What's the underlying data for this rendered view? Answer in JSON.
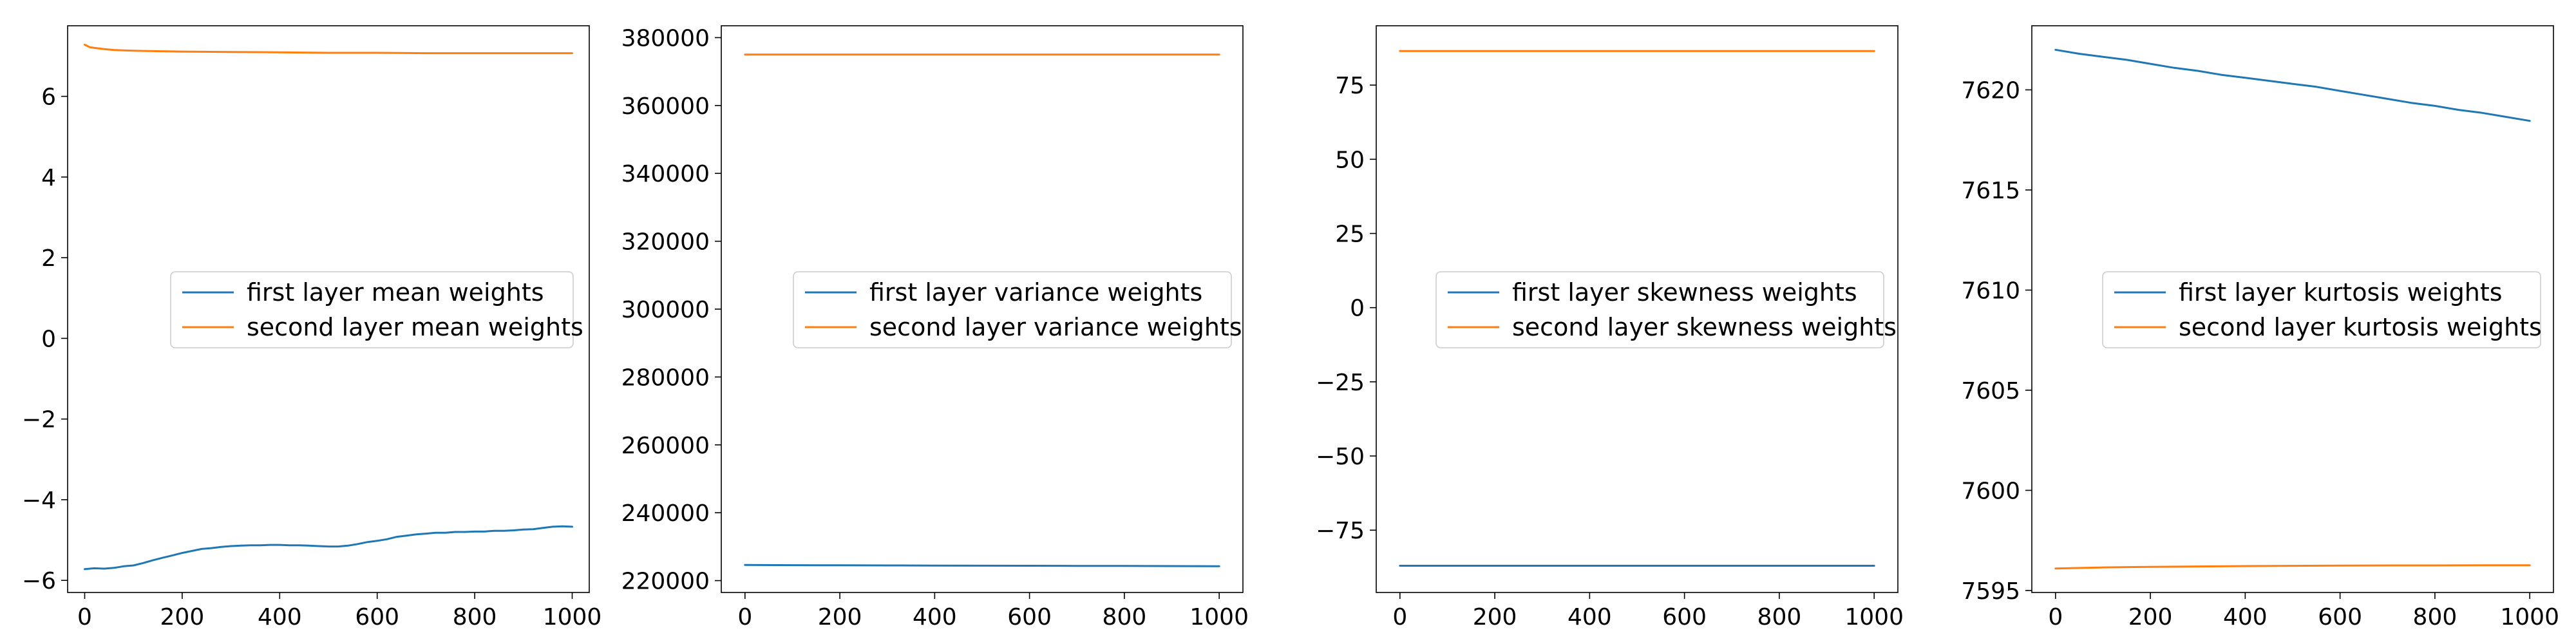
{
  "chart_data": [
    {
      "type": "line",
      "title": "",
      "xlabel": "",
      "ylabel": "",
      "xlim": [
        -35,
        1035
      ],
      "ylim": [
        -6.3,
        7.75
      ],
      "xticks": [
        0,
        200,
        400,
        600,
        800,
        1000
      ],
      "xtick_labels": [
        "0",
        "200",
        "400",
        "600",
        "800",
        "1000"
      ],
      "yticks": [
        -6,
        -4,
        -2,
        0,
        2,
        4,
        6
      ],
      "ytick_labels": [
        "−6",
        "−4",
        "−2",
        "0",
        "2",
        "4",
        "6"
      ],
      "grid": false,
      "legend_position": "center-right",
      "series": [
        {
          "name": "first layer mean weights",
          "color": "#1f77b4",
          "x": [
            0,
            20,
            40,
            60,
            80,
            100,
            120,
            140,
            160,
            180,
            200,
            220,
            240,
            260,
            280,
            300,
            320,
            340,
            360,
            380,
            400,
            420,
            440,
            460,
            480,
            500,
            520,
            540,
            560,
            580,
            600,
            620,
            640,
            660,
            680,
            700,
            720,
            740,
            760,
            780,
            800,
            820,
            840,
            860,
            880,
            900,
            920,
            940,
            960,
            980,
            1000
          ],
          "y": [
            -5.72,
            -5.7,
            -5.71,
            -5.69,
            -5.65,
            -5.63,
            -5.57,
            -5.5,
            -5.44,
            -5.38,
            -5.32,
            -5.27,
            -5.22,
            -5.2,
            -5.17,
            -5.15,
            -5.14,
            -5.13,
            -5.13,
            -5.12,
            -5.12,
            -5.13,
            -5.13,
            -5.14,
            -5.15,
            -5.16,
            -5.16,
            -5.14,
            -5.1,
            -5.05,
            -5.02,
            -4.98,
            -4.92,
            -4.89,
            -4.86,
            -4.84,
            -4.82,
            -4.82,
            -4.8,
            -4.8,
            -4.79,
            -4.79,
            -4.77,
            -4.77,
            -4.76,
            -4.74,
            -4.73,
            -4.7,
            -4.67,
            -4.66,
            -4.67
          ]
        },
        {
          "name": "second layer mean weights",
          "color": "#ff7f0e",
          "x": [
            0,
            10,
            20,
            40,
            60,
            80,
            100,
            150,
            200,
            300,
            400,
            500,
            600,
            700,
            800,
            900,
            1000
          ],
          "y": [
            7.28,
            7.22,
            7.2,
            7.17,
            7.15,
            7.14,
            7.13,
            7.12,
            7.11,
            7.1,
            7.09,
            7.08,
            7.08,
            7.07,
            7.07,
            7.07,
            7.07
          ]
        }
      ]
    },
    {
      "type": "line",
      "title": "",
      "xlabel": "",
      "ylabel": "",
      "xlim": [
        -50,
        1050
      ],
      "ylim": [
        216500,
        383500
      ],
      "xticks": [
        0,
        200,
        400,
        600,
        800,
        1000
      ],
      "xtick_labels": [
        "0",
        "200",
        "400",
        "600",
        "800",
        "1000"
      ],
      "yticks": [
        220000,
        240000,
        260000,
        280000,
        300000,
        320000,
        340000,
        360000,
        380000
      ],
      "ytick_labels": [
        "220000",
        "240000",
        "260000",
        "280000",
        "300000",
        "320000",
        "340000",
        "360000",
        "380000"
      ],
      "grid": false,
      "legend_position": "center-right",
      "series": [
        {
          "name": "first layer variance weights",
          "color": "#1f77b4",
          "x": [
            0,
            100,
            200,
            300,
            400,
            500,
            600,
            700,
            800,
            900,
            1000
          ],
          "y": [
            224600,
            224550,
            224500,
            224470,
            224430,
            224400,
            224370,
            224340,
            224310,
            224280,
            224250
          ]
        },
        {
          "name": "second layer variance weights",
          "color": "#ff7f0e",
          "x": [
            0,
            100,
            200,
            300,
            400,
            500,
            600,
            700,
            800,
            900,
            1000
          ],
          "y": [
            375000,
            375000,
            375000,
            375000,
            375000,
            375000,
            375000,
            375000,
            375000,
            375000,
            375000
          ]
        }
      ]
    },
    {
      "type": "line",
      "title": "",
      "xlabel": "",
      "ylabel": "",
      "xlim": [
        -50,
        1050
      ],
      "ylim": [
        -96,
        95
      ],
      "xticks": [
        0,
        200,
        400,
        600,
        800,
        1000
      ],
      "xtick_labels": [
        "0",
        "200",
        "400",
        "600",
        "800",
        "1000"
      ],
      "yticks": [
        -75,
        -50,
        -25,
        0,
        25,
        50,
        75
      ],
      "ytick_labels": [
        "−75",
        "−50",
        "−25",
        "0",
        "25",
        "50",
        "75"
      ],
      "grid": false,
      "legend_position": "center-right",
      "series": [
        {
          "name": "first layer skewness weights",
          "color": "#1f77b4",
          "x": [
            0,
            100,
            200,
            300,
            400,
            500,
            600,
            700,
            800,
            900,
            1000
          ],
          "y": [
            -87,
            -87,
            -87,
            -87,
            -87,
            -87,
            -87,
            -87,
            -87,
            -87,
            -87
          ]
        },
        {
          "name": "second layer skewness weights",
          "color": "#ff7f0e",
          "x": [
            0,
            100,
            200,
            300,
            400,
            500,
            600,
            700,
            800,
            900,
            1000
          ],
          "y": [
            86.5,
            86.5,
            86.5,
            86.5,
            86.5,
            86.5,
            86.5,
            86.5,
            86.5,
            86.5,
            86.5
          ]
        }
      ]
    },
    {
      "type": "line",
      "title": "",
      "xlabel": "",
      "ylabel": "",
      "xlim": [
        -50,
        1050
      ],
      "ylim": [
        7594.9,
        7623.2
      ],
      "xticks": [
        0,
        200,
        400,
        600,
        800,
        1000
      ],
      "xtick_labels": [
        "0",
        "200",
        "400",
        "600",
        "800",
        "1000"
      ],
      "yticks": [
        7595,
        7600,
        7605,
        7610,
        7615,
        7620
      ],
      "ytick_labels": [
        "7595",
        "7600",
        "7605",
        "7610",
        "7615",
        "7620"
      ],
      "grid": false,
      "legend_position": "center-right",
      "series": [
        {
          "name": "first layer kurtosis weights",
          "color": "#1f77b4",
          "x": [
            0,
            50,
            100,
            150,
            200,
            250,
            300,
            350,
            400,
            450,
            500,
            550,
            600,
            650,
            700,
            750,
            800,
            850,
            900,
            950,
            1000
          ],
          "y": [
            7622.0,
            7621.8,
            7621.65,
            7621.5,
            7621.3,
            7621.1,
            7620.95,
            7620.75,
            7620.6,
            7620.45,
            7620.3,
            7620.15,
            7619.95,
            7619.75,
            7619.55,
            7619.35,
            7619.2,
            7619.0,
            7618.85,
            7618.65,
            7618.45
          ]
        },
        {
          "name": "second layer kurtosis weights",
          "color": "#ff7f0e",
          "x": [
            0,
            100,
            200,
            300,
            400,
            500,
            600,
            700,
            800,
            900,
            1000
          ],
          "y": [
            7596.1,
            7596.15,
            7596.18,
            7596.2,
            7596.22,
            7596.23,
            7596.24,
            7596.25,
            7596.25,
            7596.26,
            7596.26
          ]
        }
      ]
    }
  ]
}
